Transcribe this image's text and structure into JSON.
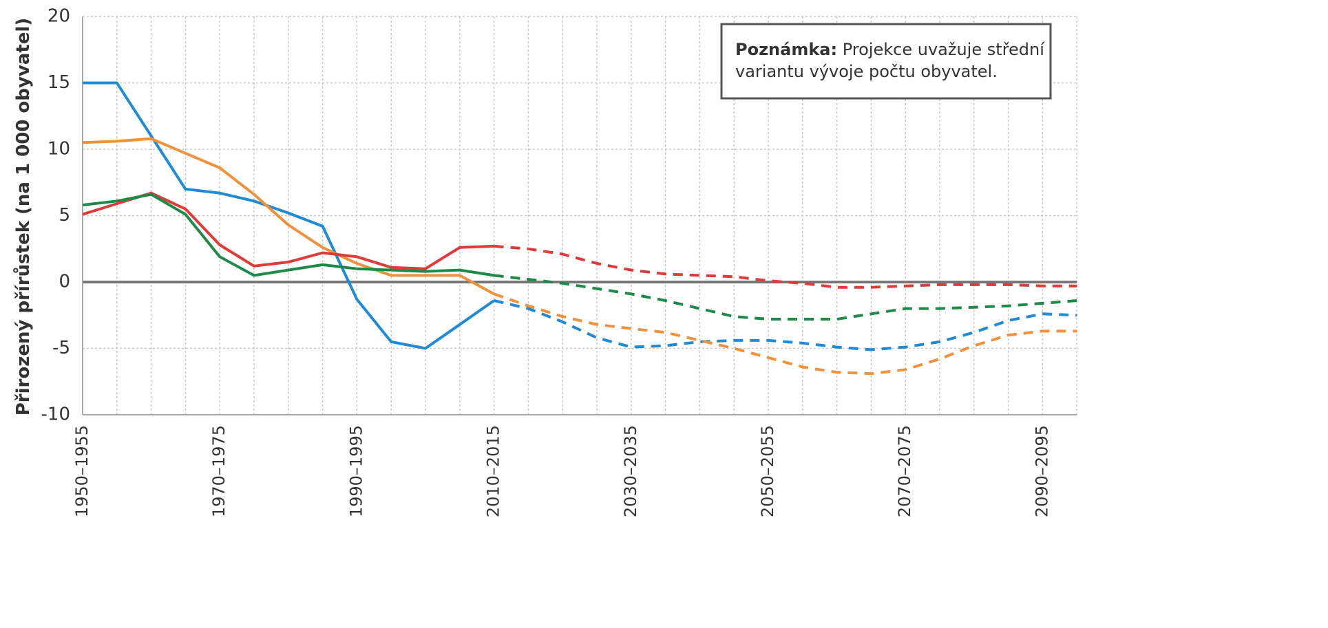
{
  "chart_data": {
    "type": "line",
    "y_label": "Přirozený přírůstek (na 1 000 obyvatel)",
    "note_label": "Poznámka:",
    "note_lines": [
      "Projekce uvažuje střední",
      "variantu vývoje počtu obyvatel."
    ],
    "categories": [
      "1950–1955",
      null,
      null,
      null,
      "1970–1975",
      null,
      null,
      null,
      "1990–1995",
      null,
      null,
      null,
      "2010–2015",
      null,
      null,
      null,
      "2030–2035",
      null,
      null,
      null,
      "2050–2055",
      null,
      null,
      null,
      "2070–2075",
      null,
      null,
      null,
      "2090–2095",
      null
    ],
    "ylim": [
      -10,
      20
    ],
    "yticks": [
      -10,
      -5,
      0,
      5,
      10,
      15,
      20
    ],
    "grid": true,
    "series": [
      {
        "color": "#1f8ad6",
        "dashed": false,
        "values": [
          15,
          15,
          11,
          7.0,
          6.7,
          6.1,
          5.2,
          4.2,
          -1.3,
          -4.5,
          -5.0,
          -3.2,
          -1.4,
          null,
          null,
          null,
          null,
          null,
          null,
          null,
          null,
          null,
          null,
          null,
          null,
          null,
          null,
          null,
          null,
          null
        ]
      },
      {
        "color": "#f0913c",
        "dashed": false,
        "values": [
          10.5,
          10.6,
          10.8,
          9.7,
          8.6,
          6.6,
          4.3,
          2.6,
          1.4,
          0.5,
          0.5,
          0.5,
          -0.9,
          null,
          null,
          null,
          null,
          null,
          null,
          null,
          null,
          null,
          null,
          null,
          null,
          null,
          null,
          null,
          null,
          null
        ]
      },
      {
        "color": "#e03a3a",
        "dashed": false,
        "values": [
          5.1,
          5.9,
          6.7,
          5.5,
          2.8,
          1.2,
          1.5,
          2.2,
          1.9,
          1.1,
          1.0,
          2.6,
          2.7,
          null,
          null,
          null,
          null,
          null,
          null,
          null,
          null,
          null,
          null,
          null,
          null,
          null,
          null,
          null,
          null,
          null
        ]
      },
      {
        "color": "#1e8a4a",
        "dashed": false,
        "values": [
          5.8,
          6.1,
          6.6,
          5.1,
          1.9,
          0.5,
          0.9,
          1.3,
          1.0,
          0.9,
          0.8,
          0.9,
          0.5,
          null,
          null,
          null,
          null,
          null,
          null,
          null,
          null,
          null,
          null,
          null,
          null,
          null,
          null,
          null,
          null,
          null
        ]
      },
      {
        "color": "#1f8ad6",
        "dashed": true,
        "values": [
          null,
          null,
          null,
          null,
          null,
          null,
          null,
          null,
          null,
          null,
          null,
          null,
          -1.4,
          -2.0,
          -3.0,
          -4.2,
          -4.9,
          -4.8,
          -4.5,
          -4.4,
          -4.4,
          -4.6,
          -4.9,
          -5.1,
          -4.9,
          -4.5,
          -3.8,
          -2.9,
          -2.4,
          -2.5
        ]
      },
      {
        "color": "#f0913c",
        "dashed": true,
        "values": [
          null,
          null,
          null,
          null,
          null,
          null,
          null,
          null,
          null,
          null,
          null,
          null,
          -0.9,
          -1.8,
          -2.6,
          -3.2,
          -3.5,
          -3.8,
          -4.4,
          -5.0,
          -5.7,
          -6.4,
          -6.8,
          -6.9,
          -6.6,
          -5.8,
          -4.8,
          -4.0,
          -3.7,
          -3.7
        ]
      },
      {
        "color": "#e03a3a",
        "dashed": true,
        "values": [
          null,
          null,
          null,
          null,
          null,
          null,
          null,
          null,
          null,
          null,
          null,
          null,
          2.7,
          2.5,
          2.1,
          1.4,
          0.9,
          0.6,
          0.5,
          0.4,
          0.1,
          -0.1,
          -0.4,
          -0.4,
          -0.3,
          -0.2,
          -0.2,
          -0.2,
          -0.3,
          -0.3
        ]
      },
      {
        "color": "#1e8a4a",
        "dashed": true,
        "values": [
          null,
          null,
          null,
          null,
          null,
          null,
          null,
          null,
          null,
          null,
          null,
          null,
          0.5,
          0.2,
          -0.1,
          -0.5,
          -0.9,
          -1.4,
          -2.0,
          -2.6,
          -2.8,
          -2.8,
          -2.8,
          -2.4,
          -2.0,
          -2.0,
          -1.9,
          -1.8,
          -1.6,
          -1.4
        ]
      }
    ]
  }
}
